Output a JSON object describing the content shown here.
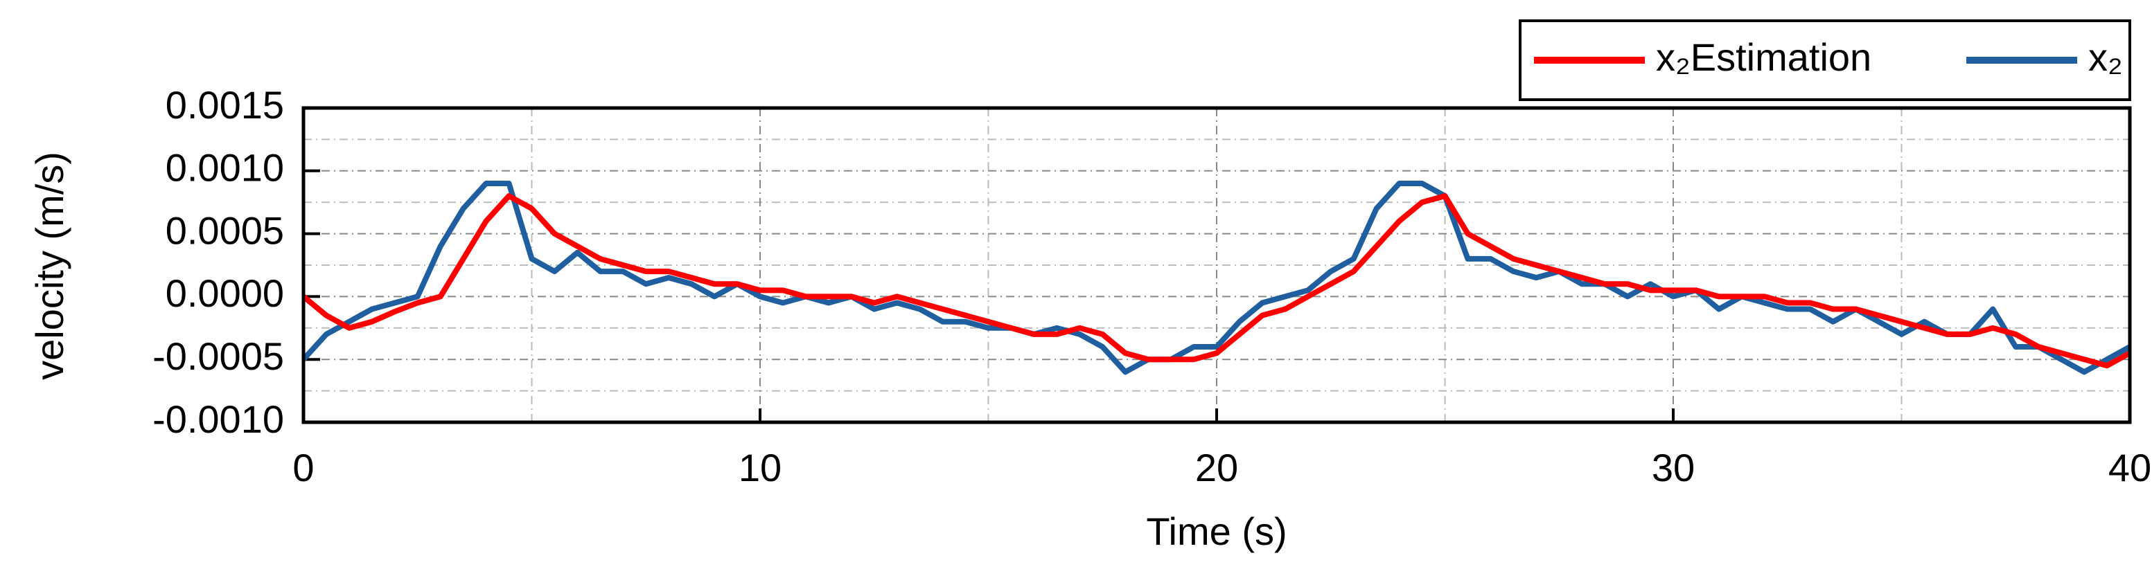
{
  "chart_data": {
    "type": "line",
    "x_label": "Time (s)",
    "y_label": "velocity (m/s)",
    "x": [
      0,
      0.5,
      1,
      1.5,
      2,
      2.5,
      3,
      3.5,
      4,
      4.5,
      5,
      5.5,
      6,
      6.5,
      7,
      7.5,
      8,
      8.5,
      9,
      9.5,
      10,
      10.5,
      11,
      11.5,
      12,
      12.5,
      13,
      13.5,
      14,
      14.5,
      15,
      15.5,
      16,
      16.5,
      17,
      17.5,
      18,
      18.5,
      19,
      19.5,
      20,
      20.5,
      21,
      21.5,
      22,
      22.5,
      23,
      23.5,
      24,
      24.5,
      25,
      25.5,
      26,
      26.5,
      27,
      27.5,
      28,
      28.5,
      29,
      29.5,
      30,
      30.5,
      31,
      31.5,
      32,
      32.5,
      33,
      33.5,
      34,
      34.5,
      35,
      35.5,
      36,
      36.5,
      37,
      37.5,
      38,
      38.5,
      39,
      39.5,
      40
    ],
    "series": [
      {
        "name": "x₂Estimation",
        "color": "#ff0000",
        "values": [
          0.0,
          -0.00015,
          -0.00025,
          -0.0002,
          -0.00012,
          -5e-05,
          0.0,
          0.0003,
          0.0006,
          0.0008,
          0.0007,
          0.0005,
          0.0004,
          0.0003,
          0.00025,
          0.0002,
          0.0002,
          0.00015,
          0.0001,
          0.0001,
          5e-05,
          5e-05,
          0.0,
          0.0,
          0.0,
          -5e-05,
          0.0,
          -5e-05,
          -0.0001,
          -0.00015,
          -0.0002,
          -0.00025,
          -0.0003,
          -0.0003,
          -0.00025,
          -0.0003,
          -0.00045,
          -0.0005,
          -0.0005,
          -0.0005,
          -0.00045,
          -0.0003,
          -0.00015,
          -0.0001,
          0.0,
          0.0001,
          0.0002,
          0.0004,
          0.0006,
          0.00075,
          0.0008,
          0.0005,
          0.0004,
          0.0003,
          0.00025,
          0.0002,
          0.00015,
          0.0001,
          0.0001,
          5e-05,
          5e-05,
          5e-05,
          0.0,
          0.0,
          0.0,
          -5e-05,
          -5e-05,
          -0.0001,
          -0.0001,
          -0.00015,
          -0.0002,
          -0.00025,
          -0.0003,
          -0.0003,
          -0.00025,
          -0.0003,
          -0.0004,
          -0.00045,
          -0.0005,
          -0.00055,
          -0.00045
        ]
      },
      {
        "name": "x₂",
        "color": "#1f5fa0",
        "values": [
          -0.0005,
          -0.0003,
          -0.0002,
          -0.0001,
          -5e-05,
          0.0,
          0.0004,
          0.0007,
          0.0009,
          0.0009,
          0.0003,
          0.0002,
          0.00035,
          0.0002,
          0.0002,
          0.0001,
          0.00015,
          0.0001,
          0.0,
          0.0001,
          0.0,
          -5e-05,
          0.0,
          -5e-05,
          0.0,
          -0.0001,
          -5e-05,
          -0.0001,
          -0.0002,
          -0.0002,
          -0.00025,
          -0.00025,
          -0.0003,
          -0.00025,
          -0.0003,
          -0.0004,
          -0.0006,
          -0.0005,
          -0.0005,
          -0.0004,
          -0.0004,
          -0.0002,
          -5e-05,
          0.0,
          5e-05,
          0.0002,
          0.0003,
          0.0007,
          0.0009,
          0.0009,
          0.0008,
          0.0003,
          0.0003,
          0.0002,
          0.00015,
          0.0002,
          0.0001,
          0.0001,
          0.0,
          0.0001,
          0.0,
          5e-05,
          -0.0001,
          0.0,
          -5e-05,
          -0.0001,
          -0.0001,
          -0.0002,
          -0.0001,
          -0.0002,
          -0.0003,
          -0.0002,
          -0.0003,
          -0.0003,
          -0.0001,
          -0.0004,
          -0.0004,
          -0.0005,
          -0.0006,
          -0.0005,
          -0.0004
        ]
      }
    ],
    "xlim": [
      0,
      40
    ],
    "xticks": [
      0,
      10,
      20,
      30,
      40
    ],
    "xminorticks": [
      5,
      15,
      25,
      35
    ],
    "ylim": [
      -0.001,
      0.0015
    ],
    "yticks": [
      {
        "value": -0.001,
        "label": "-0.0010"
      },
      {
        "value": -0.0005,
        "label": "-0.0005"
      },
      {
        "value": 0,
        "label": "0.0000"
      },
      {
        "value": 0.0005,
        "label": "0.0005"
      },
      {
        "value": 0.001,
        "label": "0.0010"
      },
      {
        "value": 0.0015,
        "label": "0.0015"
      }
    ],
    "yminorticks": [
      -0.00075,
      -0.00025,
      0.00025,
      0.00075,
      0.00125
    ],
    "grid": true,
    "legend": "top-right"
  }
}
